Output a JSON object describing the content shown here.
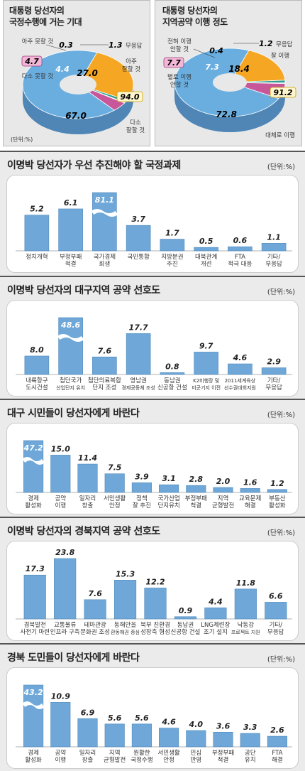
{
  "pie1": {
    "title_line1": "대통령 당선자의",
    "title_line2": "국정수행에 거는 기대",
    "unit": "(단위:%)",
    "slices": [
      {
        "label": "아주 잘할 것",
        "value": 27.0,
        "color": "#f5a623"
      },
      {
        "label": "무응답",
        "value": 1.3,
        "color": "#2a9d8f"
      },
      {
        "label": "아주 못할 것",
        "value": 0.3,
        "color": "#3a5fa8"
      },
      {
        "label": "다소 못할 것",
        "value": 4.4,
        "color": "#c8579a"
      },
      {
        "label": "다소 잘할 것",
        "value": 67.0,
        "color": "#6aaee0"
      }
    ],
    "labels": {
      "v_270": "27.0",
      "v_670": "67.0",
      "v_44": "4.4",
      "v_03": "0.3",
      "v_13": "1.3",
      "l_13": "무응답",
      "l_270a": "아주",
      "l_270b": "잘할 것",
      "l_03": "아주 못할 것",
      "box_47": "4.7",
      "l_47": "다소 못할 것",
      "box_940": "94.0",
      "l_670a": "다소",
      "l_670b": "잘할 것"
    }
  },
  "pie2": {
    "title_line1": "대통령 당선자의",
    "title_line2": "지역공약 이행 정도",
    "unit": "(단위:%)",
    "slices": [
      {
        "label": "잘 이행",
        "value": 18.4,
        "color": "#f5a623"
      },
      {
        "label": "무응답",
        "value": 1.2,
        "color": "#2a9d8f"
      },
      {
        "label": "전혀 이행 안할 것",
        "value": 0.4,
        "color": "#3a5fa8"
      },
      {
        "label": "별로 이행 안할 것",
        "value": 7.3,
        "color": "#c8579a"
      },
      {
        "label": "대체로 이행",
        "value": 72.8,
        "color": "#6aaee0"
      }
    ],
    "labels": {
      "v_184": "18.4",
      "v_728": "72.8",
      "v_73": "7.3",
      "v_04": "0.4",
      "v_12": "1.2",
      "l_12": "무응답",
      "l_184": "잘 이행",
      "l_04a": "전혀 이행",
      "l_04b": "안할 것",
      "box_77": "7.7",
      "l_73a": "별로 이행",
      "l_73b": "안할 것",
      "box_912": "91.2",
      "l_728": "대체로 이행"
    }
  },
  "chart_data": [
    {
      "type": "bar",
      "title": "이명박 당선자가 우선 추진해야 할 국정과제",
      "unit": "(단위:%)",
      "categories": [
        [
          "정치개혁"
        ],
        [
          "부정부패",
          "척결"
        ],
        [
          "국가경제",
          "회생"
        ],
        [
          "국민통합"
        ],
        [
          "지방분권",
          "추진"
        ],
        [
          "대북관계",
          "개선"
        ],
        [
          "FTA",
          "적극 대응"
        ],
        [
          "기타/",
          "무응답"
        ]
      ],
      "values": [
        5.2,
        6.1,
        81.1,
        3.7,
        1.7,
        0.5,
        0.6,
        1.1
      ],
      "labels": [
        "5.2",
        "6.1",
        "81.1",
        "3.7",
        "1.7",
        "0.5",
        "0.6",
        "1.1"
      ],
      "break": [
        2
      ]
    },
    {
      "type": "bar",
      "title": "이명박 당선자의 대구지역 공약 선호도",
      "unit": "(단위:%)",
      "categories": [
        [
          "내륙항구",
          "도시건설"
        ],
        [
          "첨단국가",
          "산업단지 유치"
        ],
        [
          "첨단의료복합",
          "단지 조성"
        ],
        [
          "영남권",
          "경제공동체 조성"
        ],
        [
          "동남권",
          "신공항 건설"
        ],
        [
          "K2비행장 및",
          "미군기지 이전"
        ],
        [
          "2011세계육상",
          "선수권대회지원"
        ],
        [
          "기타/",
          "무응답"
        ]
      ],
      "values": [
        8.0,
        48.6,
        7.6,
        17.7,
        0.8,
        9.7,
        4.6,
        2.9
      ],
      "labels": [
        "8.0",
        "48.6",
        "7.6",
        "17.7",
        "0.8",
        "9.7",
        "4.6",
        "2.9"
      ],
      "break": [
        1
      ]
    },
    {
      "type": "bar",
      "title": "대구 시민들이 당선자에게 바란다",
      "unit": "(단위:%)",
      "categories": [
        [
          "경제",
          "활성화"
        ],
        [
          "공약",
          "이행"
        ],
        [
          "일자리",
          "창출"
        ],
        [
          "서민생활",
          "안정"
        ],
        [
          "정책",
          "잘 추진"
        ],
        [
          "국가산업",
          "단지유치"
        ],
        [
          "부정부패",
          "척결"
        ],
        [
          "지역",
          "균형발전"
        ],
        [
          "교육문제",
          "해결"
        ],
        [
          "부동산",
          "활성화"
        ]
      ],
      "values": [
        47.2,
        15.0,
        11.4,
        7.5,
        3.9,
        3.1,
        2.8,
        2.0,
        1.6,
        1.2
      ],
      "labels": [
        "47.2",
        "15.0",
        "11.4",
        "7.5",
        "3.9",
        "3.1",
        "2.8",
        "2.0",
        "1.6",
        "1.2"
      ],
      "break": [
        0
      ]
    },
    {
      "type": "bar",
      "title": "이명박 당선자의 경북지역 공약 선호도",
      "unit": "(단위:%)",
      "categories": [
        [
          "경북발전",
          "사전기 마련"
        ],
        [
          "교통물류",
          "인프라 구축"
        ],
        [
          "테마관광",
          "문화권 조성"
        ],
        [
          "동해안을",
          "환동해권 중심"
        ],
        [
          "북부 친환경",
          "성장축 형성"
        ],
        [
          "동남권",
          "신공항 건설"
        ],
        [
          "LNG제련장",
          "조기 설치"
        ],
        [
          "낙동강",
          "프로젝트 지원"
        ],
        [
          "기타/",
          "무응답"
        ]
      ],
      "values": [
        17.3,
        23.8,
        7.6,
        15.3,
        12.2,
        0.9,
        4.4,
        11.8,
        6.6
      ],
      "labels": [
        "17.3",
        "23.8",
        "7.6",
        "15.3",
        "12.2",
        "0.9",
        "4.4",
        "11.8",
        "6.6"
      ],
      "break": []
    },
    {
      "type": "bar",
      "title": "경북 도민들이 당선자에게 바란다",
      "unit": "(단위:%)",
      "categories": [
        [
          "경제",
          "활성화"
        ],
        [
          "공약",
          "이행"
        ],
        [
          "일자리",
          "창출"
        ],
        [
          "지역",
          "균형발전"
        ],
        [
          "원활한",
          "국정수행"
        ],
        [
          "서민생활",
          "안정"
        ],
        [
          "민심",
          "반영"
        ],
        [
          "부정부패",
          "척결"
        ],
        [
          "공단",
          "유치"
        ],
        [
          "FTA",
          "해결"
        ]
      ],
      "values": [
        43.2,
        10.9,
        6.9,
        5.6,
        5.6,
        4.6,
        4.0,
        3.6,
        3.3,
        2.6
      ],
      "labels": [
        "43.2",
        "10.9",
        "6.9",
        "5.6",
        "5.6",
        "4.6",
        "4.0",
        "3.6",
        "3.3",
        "2.6"
      ],
      "break": [
        0
      ]
    }
  ]
}
